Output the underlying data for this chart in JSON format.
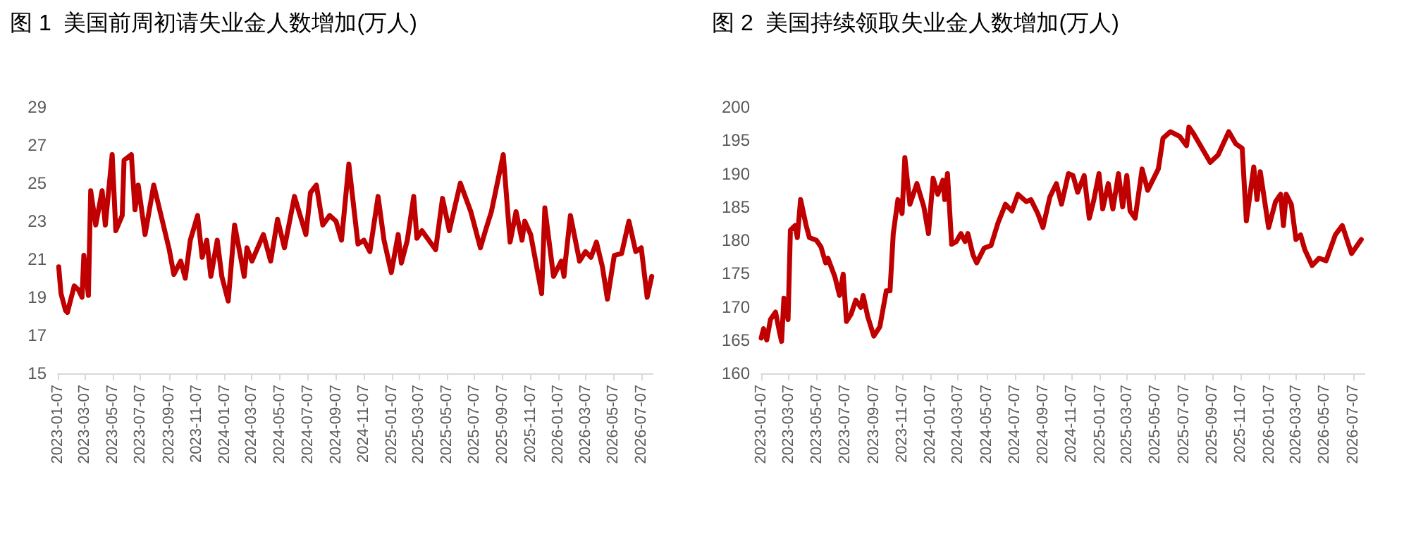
{
  "chart_data": [
    {
      "type": "line",
      "title": "图 1  美国前周初请失业金人数增加(万人)",
      "xlim": [
        "2023-01-07",
        "2026-08-01"
      ],
      "xticks": [
        "2023-01-07",
        "2023-03-07",
        "2023-05-07",
        "2023-07-07",
        "2023-09-07",
        "2023-11-07",
        "2024-01-07",
        "2024-03-07",
        "2024-05-07",
        "2024-07-07",
        "2024-09-07",
        "2024-11-07",
        "2025-01-07",
        "2025-03-07",
        "2025-05-07",
        "2025-07-07",
        "2025-09-07",
        "2025-11-07",
        "2026-01-07",
        "2026-03-07",
        "2026-05-07",
        "2026-07-07"
      ],
      "ylim": [
        15,
        29
      ],
      "yticks": [
        15,
        17,
        19,
        21,
        23,
        25,
        27,
        29
      ],
      "grid": false,
      "marker": "none",
      "line_style": "solid",
      "series": [
        {
          "color": "#c00000",
          "x": [
            "2023-01-09",
            "2023-01-14",
            "2023-01-24",
            "2023-01-28",
            "2023-02-12",
            "2023-02-21",
            "2023-03-01",
            "2023-03-05",
            "2023-03-15",
            "2023-03-20",
            "2023-03-31",
            "2023-04-14",
            "2023-04-21",
            "2023-05-06",
            "2023-05-14",
            "2023-05-28",
            "2023-06-01",
            "2023-06-17",
            "2023-06-25",
            "2023-07-02",
            "2023-07-17",
            "2023-08-05",
            "2023-08-23",
            "2023-09-08",
            "2023-09-18",
            "2023-10-03",
            "2023-10-13",
            "2023-10-24",
            "2023-11-09",
            "2023-11-19",
            "2023-11-29",
            "2023-12-08",
            "2023-12-22",
            "2024-01-01",
            "2024-01-15",
            "2024-01-29",
            "2024-02-19",
            "2024-02-25",
            "2024-03-07",
            "2024-04-01",
            "2024-04-17",
            "2024-05-02",
            "2024-05-17",
            "2024-06-08",
            "2024-07-03",
            "2024-07-13",
            "2024-07-26",
            "2024-08-09",
            "2024-08-24",
            "2024-09-07",
            "2024-09-19",
            "2024-10-05",
            "2024-10-25",
            "2024-11-07",
            "2024-11-20",
            "2024-12-08",
            "2024-12-21",
            "2025-01-06",
            "2025-01-21",
            "2025-01-28",
            "2025-02-10",
            "2025-02-24",
            "2025-03-03",
            "2025-03-14",
            "2025-04-13",
            "2025-04-28",
            "2025-05-13",
            "2025-06-06",
            "2025-06-29",
            "2025-07-20",
            "2025-07-31",
            "2025-08-13",
            "2025-09-08",
            "2025-09-23",
            "2025-10-06",
            "2025-10-19",
            "2025-10-25",
            "2025-11-07",
            "2025-12-01",
            "2025-12-08",
            "2025-12-27",
            "2026-01-13",
            "2026-01-19",
            "2026-01-22",
            "2026-02-02",
            "2026-02-22",
            "2026-03-07",
            "2026-03-19",
            "2026-03-31",
            "2026-04-13",
            "2026-04-24",
            "2026-05-09",
            "2026-05-25",
            "2026-06-10",
            "2026-06-25",
            "2026-07-07",
            "2026-07-20",
            "2026-07-30"
          ],
          "values": [
            20.6,
            19.2,
            18.3,
            18.2,
            19.6,
            19.4,
            19.0,
            21.2,
            19.1,
            24.6,
            22.8,
            24.6,
            22.8,
            26.5,
            22.5,
            23.3,
            26.2,
            26.5,
            23.6,
            24.9,
            22.3,
            24.9,
            23.1,
            21.5,
            20.2,
            20.9,
            20.0,
            22.0,
            23.3,
            21.1,
            22.0,
            20.1,
            22.0,
            20.1,
            18.8,
            22.8,
            20.1,
            21.6,
            20.9,
            22.3,
            20.9,
            23.1,
            21.6,
            24.3,
            22.3,
            24.5,
            24.9,
            22.8,
            23.3,
            23.0,
            22.0,
            26.0,
            21.8,
            22.0,
            21.4,
            24.3,
            22.0,
            20.3,
            22.3,
            20.8,
            22.0,
            24.3,
            22.1,
            22.5,
            21.5,
            24.2,
            22.5,
            25.0,
            23.5,
            21.6,
            22.5,
            23.5,
            26.5,
            21.9,
            23.5,
            22.0,
            23.0,
            22.3,
            19.2,
            23.7,
            20.1,
            20.9,
            20.1,
            20.9,
            23.3,
            20.9,
            21.4,
            21.1,
            21.9,
            20.6,
            18.9,
            21.2,
            21.3,
            23.0,
            21.4,
            21.6,
            19.0,
            20.1
          ]
        }
      ]
    },
    {
      "type": "line",
      "title": "图 2  美国持续领取失业金人数增加(万人)",
      "xlim": [
        "2023-01-07",
        "2026-08-01"
      ],
      "xticks": [
        "2023-01-07",
        "2023-03-07",
        "2023-05-07",
        "2023-07-07",
        "2023-09-07",
        "2023-11-07",
        "2024-01-07",
        "2024-03-07",
        "2024-05-07",
        "2024-07-07",
        "2024-09-07",
        "2024-11-07",
        "2025-01-07",
        "2025-03-07",
        "2025-05-07",
        "2025-07-07",
        "2025-09-07",
        "2025-11-07",
        "2026-01-07",
        "2026-03-07",
        "2026-05-07",
        "2026-07-07"
      ],
      "ylim": [
        160,
        200
      ],
      "yticks": [
        160,
        165,
        170,
        175,
        180,
        185,
        190,
        195,
        200
      ],
      "grid": false,
      "marker": "none",
      "line_style": "solid",
      "series": [
        {
          "color": "#c00000",
          "x": [
            "2023-01-07",
            "2023-01-12",
            "2023-01-19",
            "2023-01-27",
            "2023-02-07",
            "2023-02-16",
            "2023-02-20",
            "2023-02-25",
            "2023-03-06",
            "2023-03-11",
            "2023-03-21",
            "2023-03-26",
            "2023-04-02",
            "2023-04-14",
            "2023-04-21",
            "2023-05-06",
            "2023-05-16",
            "2023-05-26",
            "2023-05-31",
            "2023-06-15",
            "2023-06-25",
            "2023-07-03",
            "2023-07-10",
            "2023-07-20",
            "2023-07-30",
            "2023-08-10",
            "2023-08-15",
            "2023-08-25",
            "2023-09-07",
            "2023-09-20",
            "2023-10-04",
            "2023-10-12",
            "2023-10-19",
            "2023-10-29",
            "2023-11-07",
            "2023-11-13",
            "2023-11-24",
            "2023-12-09",
            "2023-12-24",
            "2024-01-03",
            "2024-01-13",
            "2024-01-23",
            "2024-02-03",
            "2024-02-07",
            "2024-02-13",
            "2024-02-22",
            "2024-03-03",
            "2024-03-13",
            "2024-03-22",
            "2024-03-28",
            "2024-04-08",
            "2024-04-16",
            "2024-05-02",
            "2024-05-17",
            "2024-06-01",
            "2024-06-17",
            "2024-07-01",
            "2024-07-14",
            "2024-08-01",
            "2024-08-11",
            "2024-08-26",
            "2024-09-06",
            "2024-09-21",
            "2024-10-05",
            "2024-10-16",
            "2024-10-31",
            "2024-11-10",
            "2024-11-20",
            "2024-12-04",
            "2024-12-15",
            "2024-12-25",
            "2025-01-05",
            "2025-01-13",
            "2025-01-25",
            "2025-02-04",
            "2025-02-16",
            "2025-02-25",
            "2025-03-06",
            "2025-03-13",
            "2025-03-24",
            "2025-04-08",
            "2025-04-20",
            "2025-05-13",
            "2025-05-23",
            "2025-06-08",
            "2025-06-28",
            "2025-07-13",
            "2025-07-18",
            "2025-07-28",
            "2025-08-12",
            "2025-09-02",
            "2025-09-19",
            "2025-10-12",
            "2025-10-27",
            "2025-11-10",
            "2025-11-19",
            "2025-12-05",
            "2025-12-12",
            "2025-12-19",
            "2026-01-06",
            "2026-01-21",
            "2026-02-01",
            "2026-02-07",
            "2026-02-13",
            "2026-02-24",
            "2026-03-06",
            "2026-03-16",
            "2026-03-25",
            "2026-04-10",
            "2026-04-25",
            "2026-05-10",
            "2026-05-30",
            "2026-06-14",
            "2026-07-04",
            "2026-07-25"
          ],
          "values": [
            165.3,
            166.7,
            165.0,
            168.1,
            169.2,
            166.0,
            164.8,
            171.3,
            168.1,
            181.5,
            182.2,
            180.4,
            186.1,
            182.2,
            180.4,
            180.0,
            179.0,
            176.6,
            177.3,
            174.5,
            171.7,
            174.9,
            167.8,
            168.9,
            171.0,
            169.9,
            171.7,
            168.5,
            165.6,
            167.0,
            172.4,
            172.4,
            181.0,
            186.1,
            184.0,
            192.4,
            185.4,
            188.5,
            185.0,
            181.0,
            189.3,
            186.9,
            189.0,
            186.1,
            190.0,
            179.4,
            179.8,
            181.0,
            179.8,
            181.0,
            177.8,
            176.6,
            178.8,
            179.2,
            182.6,
            185.4,
            184.4,
            186.9,
            185.8,
            186.1,
            184.0,
            181.9,
            186.5,
            188.5,
            185.4,
            190.0,
            189.7,
            187.2,
            189.7,
            183.3,
            186.1,
            190.0,
            184.7,
            188.5,
            184.7,
            190.0,
            185.0,
            189.7,
            184.4,
            183.3,
            190.7,
            187.5,
            190.7,
            195.3,
            196.3,
            195.6,
            194.2,
            197.0,
            196.0,
            194.2,
            191.7,
            192.8,
            196.3,
            194.5,
            193.8,
            182.9,
            191.0,
            186.1,
            190.3,
            181.9,
            185.8,
            186.9,
            182.2,
            186.9,
            185.4,
            180.1,
            180.8,
            178.6,
            176.2,
            177.3,
            176.9,
            180.8,
            182.2,
            178.0,
            180.1
          ]
        }
      ]
    }
  ]
}
